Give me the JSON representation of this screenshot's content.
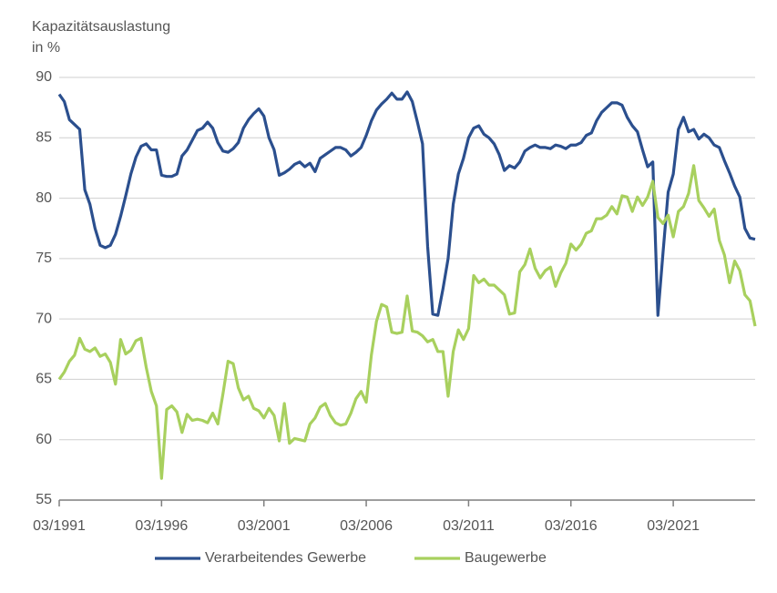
{
  "chart_data": {
    "type": "line",
    "ylabel": [
      "Kapazitätsauslastung",
      "in %"
    ],
    "categories": [
      "03/1991",
      null,
      null,
      null,
      null,
      null,
      null,
      null,
      null,
      null,
      null,
      null,
      null,
      null,
      null,
      null,
      null,
      null,
      null,
      null,
      "03/1996",
      null,
      null,
      null,
      null,
      null,
      null,
      null,
      null,
      null,
      null,
      null,
      null,
      null,
      null,
      null,
      null,
      null,
      null,
      null,
      "03/2001",
      null,
      null,
      null,
      null,
      null,
      null,
      null,
      null,
      null,
      null,
      null,
      null,
      null,
      null,
      null,
      null,
      null,
      null,
      null,
      "03/2006",
      null,
      null,
      null,
      null,
      null,
      null,
      null,
      null,
      null,
      null,
      null,
      null,
      null,
      null,
      null,
      null,
      null,
      null,
      null,
      "03/2011",
      null,
      null,
      null,
      null,
      null,
      null,
      null,
      null,
      null,
      null,
      null,
      null,
      null,
      null,
      null,
      null,
      null,
      null,
      null,
      "03/2016",
      null,
      null,
      null,
      null,
      null,
      null,
      null,
      null,
      null,
      null,
      null,
      null,
      null,
      null,
      null,
      null,
      null,
      null,
      null,
      "03/2021",
      null,
      null,
      null,
      null,
      null,
      null,
      null,
      null,
      null,
      null,
      null,
      null,
      null,
      null,
      null,
      null
    ],
    "series": [
      {
        "name": "Verarbeitendes Gewerbe",
        "color": "#2b4f8e",
        "values": [
          88.6,
          88.0,
          86.5,
          86.1,
          85.7,
          80.7,
          79.5,
          77.5,
          76.1,
          75.9,
          76.1,
          77.0,
          78.5,
          80.2,
          82.0,
          83.4,
          84.3,
          84.5,
          84.0,
          84.0,
          81.9,
          81.8,
          81.8,
          82.0,
          83.5,
          84.0,
          84.8,
          85.6,
          85.8,
          86.3,
          85.8,
          84.6,
          83.9,
          83.8,
          84.1,
          84.6,
          85.8,
          86.5,
          87.0,
          87.4,
          86.8,
          85.0,
          84.0,
          81.9,
          82.1,
          82.4,
          82.8,
          83.0,
          82.6,
          82.9,
          82.2,
          83.3,
          83.6,
          83.9,
          84.2,
          84.2,
          84.0,
          83.5,
          83.8,
          84.2,
          85.2,
          86.4,
          87.3,
          87.8,
          88.2,
          88.7,
          88.2,
          88.2,
          88.8,
          88.0,
          86.3,
          84.5,
          76.0,
          70.4,
          70.3,
          72.5,
          75.0,
          79.5,
          82.0,
          83.3,
          85.0,
          85.8,
          86.0,
          85.3,
          85.0,
          84.5,
          83.6,
          82.3,
          82.7,
          82.5,
          83.0,
          83.9,
          84.2,
          84.4,
          84.2,
          84.2,
          84.1,
          84.4,
          84.3,
          84.1,
          84.4,
          84.4,
          84.6,
          85.2,
          85.4,
          86.4,
          87.1,
          87.5,
          87.9,
          87.9,
          87.7,
          86.7,
          86.0,
          85.5,
          84.0,
          82.6,
          83.0,
          70.3,
          75.5,
          80.5,
          82.0,
          85.7,
          86.7,
          85.5,
          85.7,
          84.9,
          85.3,
          85.0,
          84.4,
          84.2,
          83.1,
          82.1,
          81.0,
          80.1,
          77.5,
          76.7,
          76.6
        ]
      },
      {
        "name": "Baugewerbe",
        "color": "#a8d05e",
        "values": [
          65.0,
          65.6,
          66.5,
          67.0,
          68.4,
          67.5,
          67.3,
          67.6,
          66.9,
          67.1,
          66.4,
          64.6,
          68.3,
          67.1,
          67.4,
          68.2,
          68.4,
          66.0,
          64.0,
          62.8,
          56.8,
          62.5,
          62.8,
          62.3,
          60.6,
          62.1,
          61.6,
          61.7,
          61.6,
          61.4,
          62.2,
          61.3,
          63.8,
          66.5,
          66.3,
          64.3,
          63.3,
          63.6,
          62.6,
          62.4,
          61.8,
          62.6,
          62.0,
          59.9,
          63.0,
          59.7,
          60.1,
          60.0,
          59.9,
          61.3,
          61.8,
          62.7,
          63.0,
          62.0,
          61.4,
          61.2,
          61.3,
          62.2,
          63.4,
          64.0,
          63.1,
          67.0,
          69.8,
          71.2,
          71.0,
          68.9,
          68.8,
          68.9,
          71.9,
          69.0,
          68.9,
          68.6,
          68.1,
          68.3,
          67.3,
          67.3,
          63.6,
          67.3,
          69.1,
          68.3,
          69.2,
          73.6,
          73.0,
          73.3,
          72.8,
          72.8,
          72.4,
          72.0,
          70.4,
          70.5,
          73.9,
          74.5,
          75.8,
          74.2,
          73.4,
          74.0,
          74.3,
          72.7,
          73.8,
          74.6,
          76.2,
          75.7,
          76.2,
          77.1,
          77.3,
          78.3,
          78.3,
          78.6,
          79.3,
          78.7,
          80.2,
          80.1,
          78.9,
          80.1,
          79.4,
          80.1,
          81.4,
          78.4,
          77.9,
          78.6,
          76.8,
          78.9,
          79.3,
          80.4,
          82.7,
          79.8,
          79.2,
          78.5,
          79.1,
          76.5,
          75.3,
          73.0,
          74.8,
          74.0,
          72.0,
          71.5,
          69.4
        ]
      }
    ],
    "ylim": [
      55,
      90
    ],
    "yticks": [
      55,
      60,
      65,
      70,
      75,
      80,
      85,
      90
    ],
    "grid": true,
    "legend": "bottom"
  }
}
